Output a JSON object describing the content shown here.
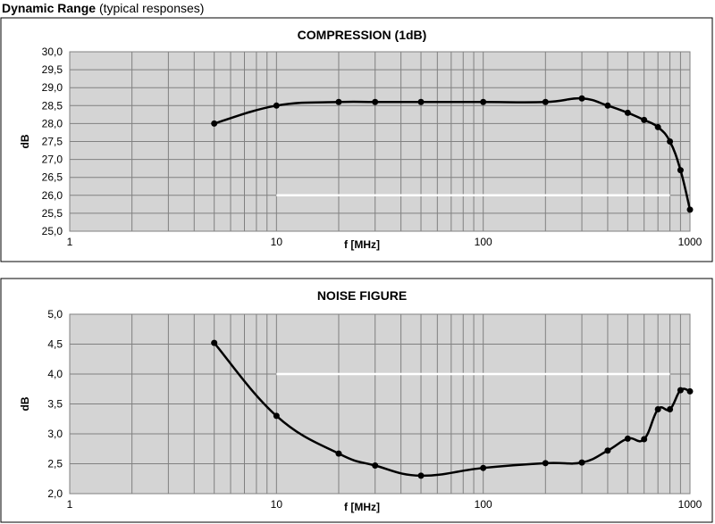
{
  "heading": {
    "title": "Dynamic Range",
    "subtitle": "(typical responses)"
  },
  "colors": {
    "plot_bg": "#d4d4d4",
    "grid": "#808080",
    "line": "#000000",
    "ref_line": "#ffffff"
  },
  "chart_data": [
    {
      "type": "line",
      "title": "COMPRESSION (1dB)",
      "xlabel": "f [MHz]",
      "ylabel": "dB",
      "xscale": "log",
      "xlim": [
        1,
        1000
      ],
      "ylim": [
        25,
        30
      ],
      "grid": true,
      "xticks": [
        "1",
        "10",
        "100",
        "1000"
      ],
      "yticks": [
        "25,0",
        "25,5",
        "26,0",
        "26,5",
        "27,0",
        "27,5",
        "28,0",
        "28,5",
        "29,0",
        "29,5",
        "30,0"
      ],
      "series": [
        {
          "x": [
            5,
            10,
            20,
            30,
            50,
            100,
            200,
            300,
            400,
            500,
            600,
            700,
            800,
            900,
            1000
          ],
          "y": [
            28.0,
            28.5,
            28.6,
            28.6,
            28.6,
            28.6,
            28.6,
            28.7,
            28.5,
            28.3,
            28.1,
            27.9,
            27.5,
            26.7,
            25.6
          ],
          "color": "#000000",
          "markers": true
        },
        {
          "x": [
            10,
            800
          ],
          "y": [
            26.0,
            26.0
          ],
          "color": "#ffffff",
          "markers": false
        }
      ]
    },
    {
      "type": "line",
      "title": "NOISE FIGURE",
      "xlabel": "f [MHz]",
      "ylabel": "dB",
      "xscale": "log",
      "xlim": [
        1,
        1000
      ],
      "ylim": [
        2,
        5
      ],
      "grid": true,
      "xticks": [
        "1",
        "10",
        "100",
        "1000"
      ],
      "yticks": [
        "2,0",
        "2,5",
        "3,0",
        "3,5",
        "4,0",
        "4,5",
        "5,0"
      ],
      "series": [
        {
          "x": [
            5,
            10,
            20,
            30,
            50,
            100,
            200,
            300,
            400,
            500,
            600,
            700,
            800,
            900,
            1000
          ],
          "y": [
            4.52,
            3.3,
            2.67,
            2.47,
            2.3,
            2.43,
            2.51,
            2.52,
            2.72,
            2.92,
            2.91,
            3.41,
            3.41,
            3.73,
            3.71
          ],
          "color": "#000000",
          "markers": true
        },
        {
          "x": [
            10,
            800
          ],
          "y": [
            4.0,
            4.0
          ],
          "color": "#ffffff",
          "markers": false
        }
      ]
    }
  ]
}
